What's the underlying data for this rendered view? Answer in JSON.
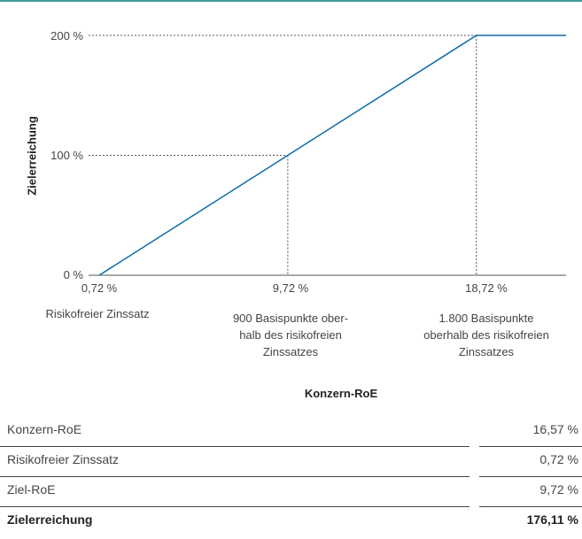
{
  "colors": {
    "accent": "#0e6ba8",
    "rule": "#3d9a9a",
    "text": "#444444"
  },
  "chart_data": {
    "type": "line",
    "xlabel": "Konzern-RoE",
    "ylabel": "Zielerreichung",
    "x_ticks": [
      "0,72 %",
      "9,72 %",
      "18,72 %"
    ],
    "y_ticks": [
      "0 %",
      "100 %",
      "200 %"
    ],
    "x_annotations": [
      "Risikofreier Zinssatz",
      "900 Basispunkte ober-\nhalb des risikofreien\nZinssatzes",
      "1.800 Basispunkte\noberhalb des risikofreien\nZinssatzes"
    ],
    "series": [
      {
        "x": [
          0.72,
          9.72,
          18.72,
          23.0
        ],
        "y": [
          0,
          100,
          200,
          200
        ]
      }
    ],
    "xlim": [
      0.72,
      23.0
    ],
    "ylim": [
      0,
      200
    ],
    "reference_lines": [
      {
        "x": 9.72,
        "y": 100
      },
      {
        "x": 18.72,
        "y": 200
      }
    ]
  },
  "table": {
    "rows": [
      {
        "label": "Konzern-RoE",
        "value": "16,57 %"
      },
      {
        "label": "Risikofreier Zinssatz",
        "value": "0,72 %"
      },
      {
        "label": "Ziel-RoE",
        "value": "9,72 %"
      },
      {
        "label": "Zielerreichung",
        "value": "176,11 %"
      }
    ]
  }
}
